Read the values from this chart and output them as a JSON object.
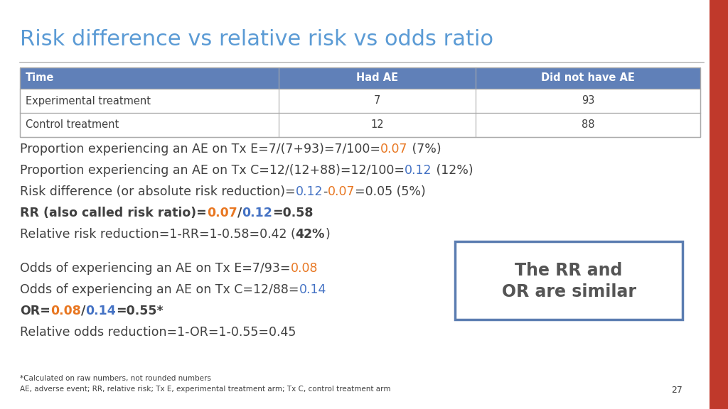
{
  "title": "Risk difference vs relative risk vs odds ratio",
  "title_color": "#5B9BD5",
  "title_fontsize": 22,
  "bg_color": "#FFFFFF",
  "table_header_bg": "#6080B8",
  "table_header_color": "#FFFFFF",
  "table_border_color": "#AAAAAA",
  "table_headers": [
    "Time",
    "Had AE",
    "Did not have AE"
  ],
  "table_row1": [
    "Experimental treatment",
    "7",
    "93"
  ],
  "table_row2": [
    "Control treatment",
    "12",
    "88"
  ],
  "orange": "#E87722",
  "blue_val": "#4472C4",
  "text_color": "#404040",
  "body_fontsize": 12.5,
  "footer_text1": "*Calculated on raw numbers, not rounded numbers",
  "footer_text2": "AE, adverse event; RR, relative risk; Tx E, experimental treatment arm; Tx C, control treatment arm",
  "page_number": "27",
  "box_text_line1": "The RR and",
  "box_text_line2": "OR are similar",
  "sidebar_color": "#C0392B",
  "line_color": "#BBBBBB",
  "box_border_color": "#5B7DB1"
}
